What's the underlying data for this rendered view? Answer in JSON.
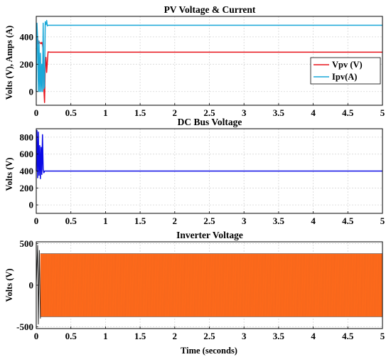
{
  "chart_data": [
    {
      "type": "line",
      "title": "PV Voltage & Current",
      "xlabel": "",
      "ylabel": "Volts (V), Amps (A)",
      "xlim": [
        0,
        5
      ],
      "ylim": [
        -100,
        550
      ],
      "xticks": [
        "0",
        "0.5",
        "1",
        "1.5",
        "2",
        "2.5",
        "3",
        "3.5",
        "4",
        "4.5",
        "5"
      ],
      "yticks": [
        "0",
        "200",
        "400"
      ],
      "xtick_values": [
        0,
        0.5,
        1,
        1.5,
        2,
        2.5,
        3,
        3.5,
        4,
        4.5,
        5
      ],
      "ytick_values": [
        0,
        200,
        400
      ],
      "grid": true,
      "legend": "right",
      "series": [
        {
          "name": "Vpv (V)",
          "color": "#e8141c",
          "x": [
            0,
            0.01,
            0.02,
            0.03,
            0.05,
            0.07,
            0.08,
            0.09,
            0.1,
            0.11,
            0.12,
            0.13,
            0.14,
            0.15,
            0.17,
            0.2,
            5
          ],
          "y": [
            310,
            330,
            390,
            350,
            360,
            350,
            360,
            345,
            300,
            20,
            -80,
            200,
            250,
            140,
            290,
            288,
            288
          ]
        },
        {
          "name": "Ipv(A)",
          "color": "#1aa8d8",
          "x": [
            0,
            0.01,
            0.02,
            0.03,
            0.04,
            0.05,
            0.06,
            0.07,
            0.08,
            0.09,
            0.1,
            0.11,
            0.12,
            0.13,
            0.14,
            0.15,
            0.16,
            0.17,
            0.2,
            5
          ],
          "y": [
            0,
            500,
            380,
            0,
            370,
            0,
            280,
            0,
            200,
            0,
            500,
            20,
            40,
            510,
            490,
            520,
            480,
            485,
            485,
            485
          ]
        }
      ]
    },
    {
      "type": "line",
      "title": "DC Bus Voltage",
      "xlabel": "",
      "ylabel": "Volts (V)",
      "xlim": [
        0,
        5
      ],
      "ylim": [
        -100,
        900
      ],
      "xticks": [
        "0",
        "0.5",
        "1",
        "1.5",
        "2",
        "2.5",
        "3",
        "3.5",
        "4",
        "4.5",
        "5"
      ],
      "yticks": [
        "0",
        "200",
        "400",
        "600",
        "800"
      ],
      "xtick_values": [
        0,
        0.5,
        1,
        1.5,
        2,
        2.5,
        3,
        3.5,
        4,
        4.5,
        5
      ],
      "ytick_values": [
        0,
        200,
        400,
        600,
        800
      ],
      "grid": true,
      "series": [
        {
          "color": "#0a0ae6",
          "x": [
            0,
            0.01,
            0.02,
            0.03,
            0.04,
            0.05,
            0.06,
            0.07,
            0.08,
            0.09,
            0.1,
            0.11,
            0.12,
            0.14,
            5
          ],
          "y": [
            400,
            880,
            320,
            860,
            350,
            700,
            310,
            680,
            360,
            830,
            420,
            380,
            400,
            400,
            400
          ]
        }
      ]
    },
    {
      "type": "line",
      "title": "Inverter Voltage",
      "xlabel": "Time (seconds)",
      "ylabel": "Volts (V)",
      "xlim": [
        0,
        5
      ],
      "ylim": [
        -520,
        520
      ],
      "xticks": [
        "0",
        "0.5",
        "1",
        "1.5",
        "2",
        "2.5",
        "3",
        "3.5",
        "4",
        "4.5",
        "5"
      ],
      "yticks": [
        "-500",
        "0",
        "500"
      ],
      "xtick_values": [
        0,
        0.5,
        1,
        1.5,
        2,
        2.5,
        3,
        3.5,
        4,
        4.5,
        5
      ],
      "ytick_values": [
        -500,
        0,
        500
      ],
      "grid": true,
      "series": [
        {
          "color": "#ff6a1a",
          "x": [
            0,
            5
          ],
          "y_envelope": [
            -380,
            380
          ]
        }
      ]
    }
  ]
}
